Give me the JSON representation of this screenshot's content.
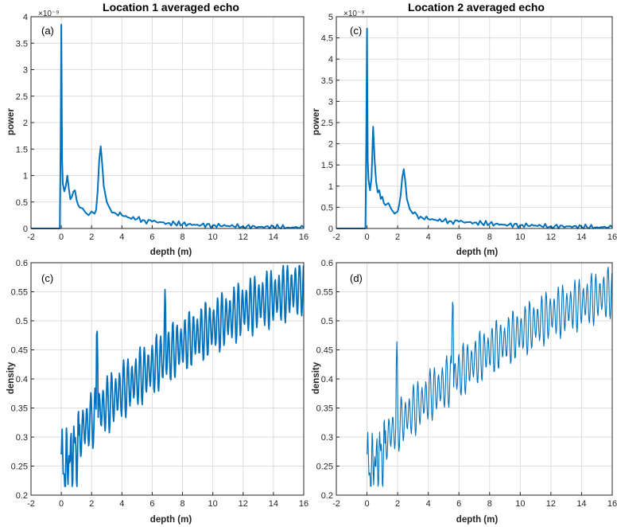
{
  "chart_data": [
    {
      "type": "line",
      "title": "Location 1 averaged echo",
      "panel_label": "(a)",
      "xlabel": "depth (m)",
      "ylabel": "power",
      "y_exponent": "×10⁻⁹",
      "xlim": [
        -2,
        16
      ],
      "ylim": [
        0,
        4
      ],
      "xticks": [
        -2,
        0,
        2,
        4,
        6,
        8,
        10,
        12,
        14,
        16
      ],
      "yticks": [
        0,
        0.5,
        1,
        1.5,
        2,
        2.5,
        3,
        3.5,
        4
      ],
      "ytick_labels": [
        "0",
        "0.5",
        "1",
        "1.5",
        "2",
        "2.5",
        "3",
        "3.5",
        "4"
      ],
      "grid": true,
      "color": "#0072BD",
      "series": [
        {
          "x": [
            -2,
            -0.1,
            -0.05,
            0,
            0.05,
            0.1,
            0.2,
            0.3,
            0.4,
            0.5,
            0.6,
            0.7,
            0.8,
            0.9,
            1.0,
            1.1,
            1.2,
            1.4,
            1.6,
            1.8,
            2.0,
            2.2,
            2.3,
            2.4,
            2.5,
            2.6,
            2.7,
            2.8,
            3.0,
            3.2,
            3.5,
            4.0,
            4.5,
            5.0,
            5.5,
            6.0,
            6.5,
            7.0,
            7.5,
            8.0,
            9.0,
            10.0,
            11.0,
            12.0,
            13.0,
            14.0,
            15.0,
            16.0
          ],
          "y": [
            0,
            0,
            1.5,
            3.85,
            1.3,
            0.85,
            0.7,
            0.8,
            1.0,
            0.75,
            0.55,
            0.6,
            0.7,
            0.72,
            0.55,
            0.45,
            0.4,
            0.38,
            0.3,
            0.25,
            0.32,
            0.28,
            0.35,
            0.7,
            1.3,
            1.55,
            1.2,
            0.8,
            0.5,
            0.38,
            0.3,
            0.25,
            0.2,
            0.18,
            0.15,
            0.13,
            0.12,
            0.1,
            0.09,
            0.08,
            0.07,
            0.06,
            0.05,
            0.04,
            0.03,
            0.03,
            0.02,
            0.02
          ]
        }
      ]
    },
    {
      "type": "line",
      "title": "Location 2 averaged echo",
      "panel_label": "(c)",
      "xlabel": "depth (m)",
      "ylabel": "power",
      "y_exponent": "×10⁻⁹",
      "xlim": [
        -2,
        16
      ],
      "ylim": [
        0,
        5
      ],
      "xticks": [
        -2,
        0,
        2,
        4,
        6,
        8,
        10,
        12,
        14,
        16
      ],
      "yticks": [
        0,
        0.5,
        1,
        1.5,
        2,
        2.5,
        3,
        3.5,
        4,
        4.5,
        5
      ],
      "ytick_labels": [
        "0",
        "0.5",
        "1",
        "1.5",
        "2",
        "2.5",
        "3",
        "3.5",
        "4",
        "4.5",
        "5"
      ],
      "grid": true,
      "color": "#0072BD",
      "series": [
        {
          "x": [
            -2,
            -0.1,
            -0.05,
            0,
            0.05,
            0.1,
            0.2,
            0.3,
            0.4,
            0.5,
            0.6,
            0.7,
            0.8,
            0.9,
            1.0,
            1.1,
            1.2,
            1.4,
            1.6,
            1.8,
            2.0,
            2.1,
            2.2,
            2.3,
            2.4,
            2.5,
            2.6,
            2.8,
            3.0,
            3.5,
            4.0,
            4.5,
            5.0,
            5.5,
            6.0,
            6.5,
            7.0,
            7.5,
            8.0,
            9.0,
            10.0,
            11.0,
            12.0,
            13.0,
            14.0,
            15.0,
            16.0
          ],
          "y": [
            0,
            0,
            2.0,
            4.72,
            1.6,
            1.15,
            0.9,
            1.2,
            2.4,
            1.6,
            1.1,
            0.85,
            0.9,
            0.7,
            0.75,
            0.6,
            0.55,
            0.6,
            0.45,
            0.35,
            0.4,
            0.55,
            0.8,
            1.2,
            1.4,
            1.1,
            0.7,
            0.45,
            0.35,
            0.28,
            0.22,
            0.2,
            0.18,
            0.17,
            0.16,
            0.15,
            0.14,
            0.12,
            0.11,
            0.09,
            0.08,
            0.07,
            0.05,
            0.05,
            0.04,
            0.03,
            0.03
          ]
        }
      ]
    },
    {
      "type": "line",
      "title": "",
      "panel_label": "(c)",
      "xlabel": "depth (m)",
      "ylabel": "density",
      "xlim": [
        -2,
        16
      ],
      "ylim": [
        0.2,
        0.6
      ],
      "xticks": [
        -2,
        0,
        2,
        4,
        6,
        8,
        10,
        12,
        14,
        16
      ],
      "yticks": [
        0.2,
        0.25,
        0.3,
        0.35,
        0.4,
        0.45,
        0.5,
        0.55,
        0.6
      ],
      "ytick_labels": [
        "0.2",
        "0.25",
        "0.3",
        "0.35",
        "0.4",
        "0.45",
        "0.5",
        "0.55",
        "0.6"
      ],
      "grid": true,
      "color": "#0072BD",
      "trend": {
        "x": [
          0,
          1,
          2,
          4,
          6,
          8,
          10,
          12,
          14,
          16
        ],
        "y": [
          0.26,
          0.3,
          0.33,
          0.38,
          0.42,
          0.46,
          0.49,
          0.52,
          0.54,
          0.56
        ]
      },
      "oscillation_amplitude": 0.04,
      "spikes": [
        {
          "x": 2.35,
          "y": 0.5
        },
        {
          "x": 6.85,
          "y": 0.56
        }
      ]
    },
    {
      "type": "line",
      "title": "",
      "panel_label": "(d)",
      "xlabel": "depth (m)",
      "ylabel": "density",
      "xlim": [
        -2,
        16
      ],
      "ylim": [
        0.2,
        0.6
      ],
      "xticks": [
        -2,
        0,
        2,
        4,
        6,
        8,
        10,
        12,
        14,
        16
      ],
      "yticks": [
        0.2,
        0.25,
        0.3,
        0.35,
        0.4,
        0.45,
        0.5,
        0.55,
        0.6
      ],
      "ytick_labels": [
        "0.2",
        "0.25",
        "0.3",
        "0.35",
        "0.4",
        "0.45",
        "0.5",
        "0.55",
        "0.6"
      ],
      "grid": true,
      "color": "#0072BD",
      "trend": {
        "x": [
          0,
          1,
          2,
          4,
          6,
          8,
          10,
          12,
          14,
          16
        ],
        "y": [
          0.26,
          0.29,
          0.32,
          0.37,
          0.41,
          0.45,
          0.48,
          0.51,
          0.53,
          0.55
        ]
      },
      "oscillation_amplitude": 0.035,
      "spikes": [
        {
          "x": 1.95,
          "y": 0.47
        },
        {
          "x": 5.6,
          "y": 0.55
        }
      ]
    }
  ]
}
